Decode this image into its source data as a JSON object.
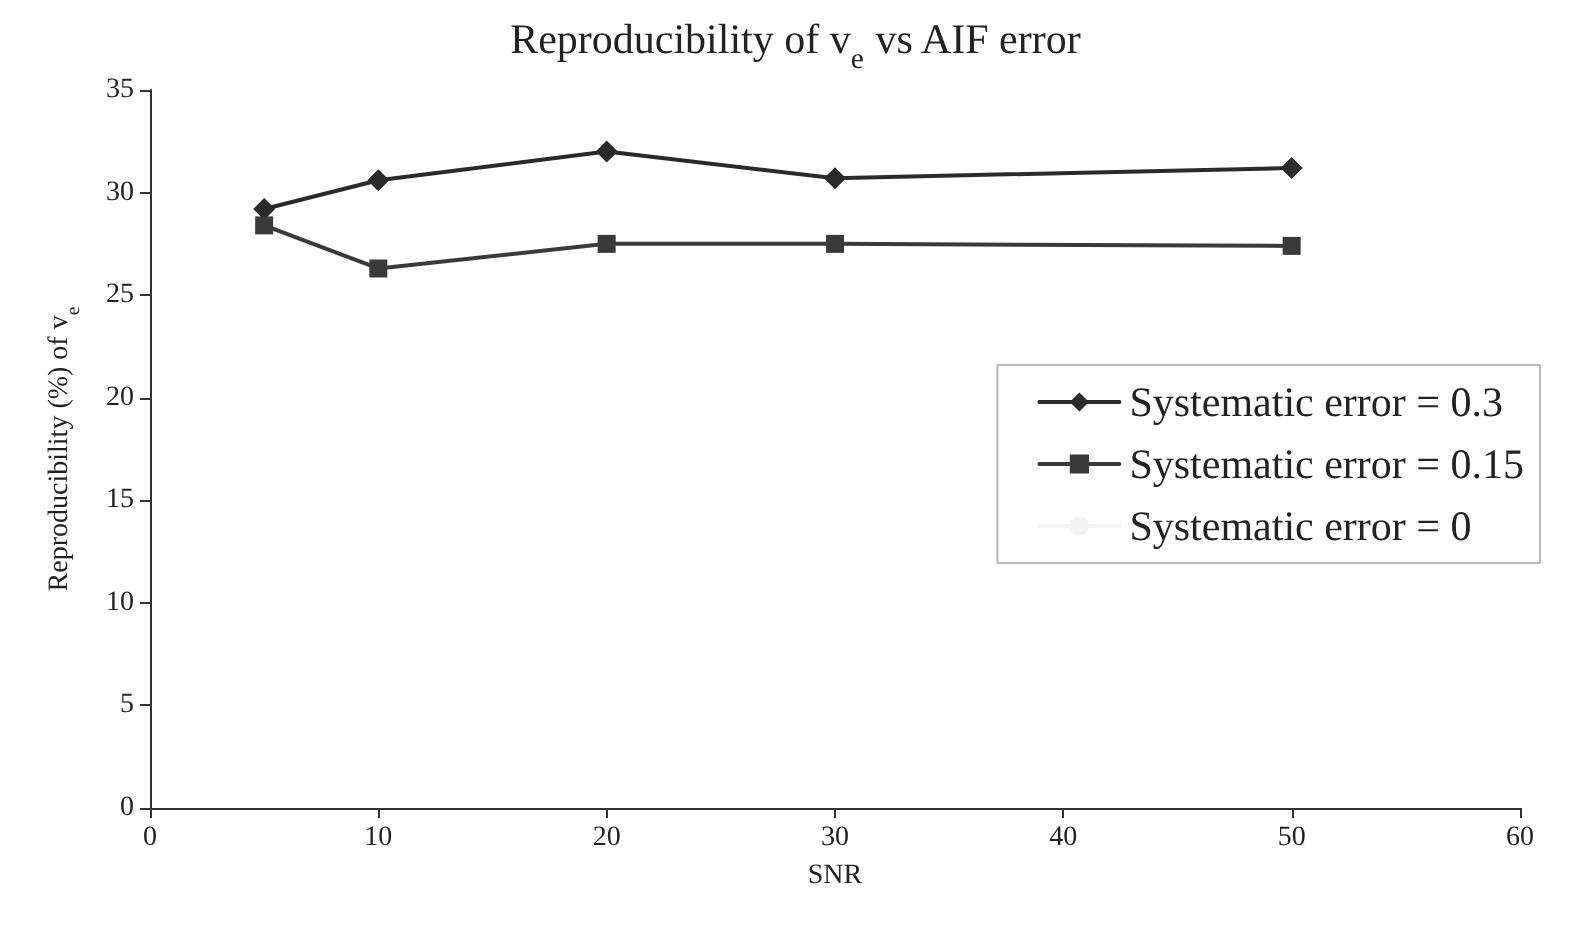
{
  "chart_data": {
    "type": "line",
    "title": "Reproducibility of v$_{e}$ vs AIF error",
    "xlabel": "SNR",
    "ylabel": "Reproducibility (%) of v$_{e}$",
    "x": [
      5,
      10,
      20,
      30,
      50
    ],
    "series": [
      {
        "name": "Systematic error = 0.3",
        "color": "#2a2a2a",
        "marker": "diamond",
        "values": [
          29.2,
          30.6,
          32.0,
          30.7,
          31.2
        ]
      },
      {
        "name": "Systematic error = 0.15",
        "color": "#3a3a3a",
        "marker": "square",
        "values": [
          28.4,
          26.3,
          27.5,
          27.5,
          27.4
        ]
      },
      {
        "name": "Systematic error = 0",
        "color": "#f4f4f4",
        "marker": "none",
        "values": [
          null,
          null,
          null,
          null,
          null
        ]
      }
    ],
    "xlim": [
      0,
      60
    ],
    "xticks": [
      0,
      10,
      20,
      30,
      40,
      50,
      60
    ],
    "ylim": [
      0,
      35
    ],
    "yticks": [
      0,
      5,
      10,
      15,
      20,
      25,
      30,
      35
    ],
    "grid": false,
    "legend": "right",
    "line_style": "solid"
  }
}
